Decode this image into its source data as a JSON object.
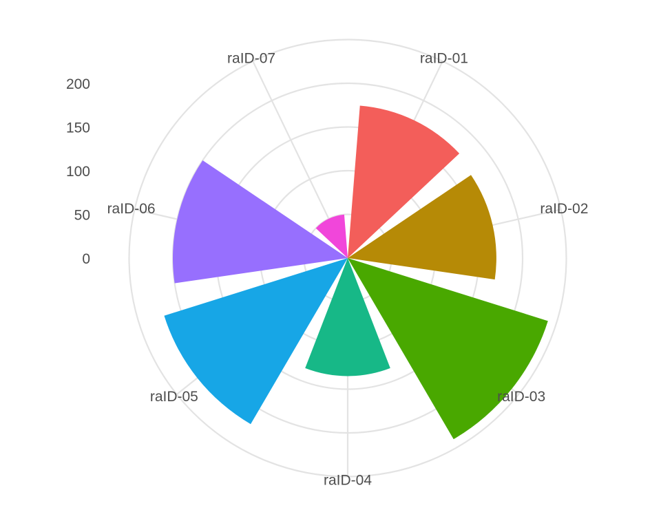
{
  "chart_data": {
    "type": "polar-bar",
    "title": "",
    "xlabel": "",
    "ylabel": "",
    "categories": [
      "raID-01",
      "raID-02",
      "raID-03",
      "raID-04",
      "raID-05",
      "raID-06",
      "raID-07"
    ],
    "values": [
      175,
      170,
      240,
      135,
      220,
      200,
      50
    ],
    "colors": [
      "#F35E5A",
      "#B68A06",
      "#49A800",
      "#17B887",
      "#17A6E6",
      "#976FFE",
      "#F146DA"
    ],
    "radial_axis": {
      "ticks": [
        0,
        50,
        100,
        150,
        200
      ],
      "tick_labels": [
        "0",
        "50",
        "100",
        "150",
        "200"
      ],
      "grid_circles": [
        50,
        100,
        150,
        200,
        250
      ]
    },
    "grid": true,
    "legend": "none"
  }
}
